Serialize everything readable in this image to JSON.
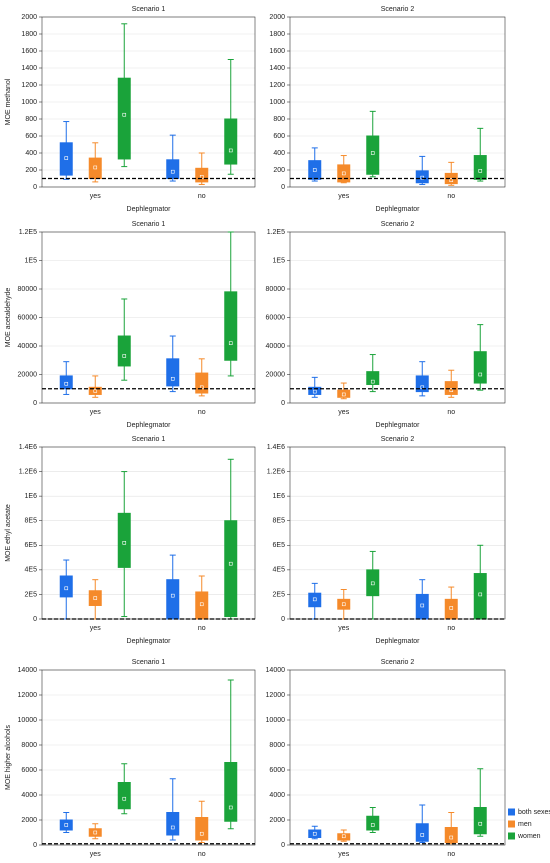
{
  "chart_data": [
    {
      "type": "box",
      "title": "Scenario 1",
      "ylabel": "MOE methanol",
      "xlabel": "Dephlegmator",
      "categories": [
        "yes",
        "no"
      ],
      "ylim": [
        0,
        2000
      ],
      "yticks": [
        0,
        200,
        400,
        600,
        800,
        1000,
        1200,
        1400,
        1600,
        1800,
        2000
      ],
      "grid": true,
      "threshold": 100,
      "series": [
        {
          "color": "#1f6fe8",
          "min": [
            90,
            70
          ],
          "q1": [
            140,
            100
          ],
          "median": [
            340,
            180
          ],
          "q3": [
            520,
            320
          ],
          "max": [
            770,
            610
          ]
        },
        {
          "color": "#f58a2a",
          "min": [
            60,
            30
          ],
          "q1": [
            100,
            60
          ],
          "median": [
            230,
            120
          ],
          "q3": [
            340,
            220
          ],
          "max": [
            520,
            400
          ]
        },
        {
          "color": "#1aa33a",
          "min": [
            240,
            150
          ],
          "q1": [
            330,
            270
          ],
          "median": [
            850,
            430
          ],
          "q3": [
            1280,
            800
          ],
          "max": [
            1920,
            1500
          ]
        }
      ]
    },
    {
      "type": "box",
      "title": "Scenario 2",
      "xlabel": "Dephlegmator",
      "categories": [
        "yes",
        "no"
      ],
      "ylim": [
        0,
        2000
      ],
      "yticks": [
        0,
        200,
        400,
        600,
        800,
        1000,
        1200,
        1400,
        1600,
        1800,
        2000
      ],
      "grid": true,
      "threshold": 100,
      "series": [
        {
          "color": "#1f6fe8",
          "min": [
            70,
            30
          ],
          "q1": [
            90,
            50
          ],
          "median": [
            200,
            110
          ],
          "q3": [
            310,
            190
          ],
          "max": [
            460,
            360
          ]
        },
        {
          "color": "#f58a2a",
          "min": [
            50,
            20
          ],
          "q1": [
            60,
            40
          ],
          "median": [
            160,
            80
          ],
          "q3": [
            260,
            160
          ],
          "max": [
            370,
            290
          ]
        },
        {
          "color": "#1aa33a",
          "min": [
            120,
            70
          ],
          "q1": [
            150,
            90
          ],
          "median": [
            400,
            190
          ],
          "q3": [
            600,
            370
          ],
          "max": [
            890,
            690
          ]
        }
      ]
    },
    {
      "type": "box",
      "title": "Scenario 1",
      "ylabel": "MOE acetaldehyde",
      "xlabel": "Dephlegmator",
      "categories": [
        "yes",
        "no"
      ],
      "ylim": [
        0,
        120000
      ],
      "yticks": [
        0,
        20000,
        40000,
        60000,
        80000,
        {
          "value": 100000,
          "label": "1E5"
        },
        {
          "value": 120000,
          "label": "1.2E5"
        }
      ],
      "grid": true,
      "threshold": 10000,
      "series": [
        {
          "color": "#1f6fe8",
          "min": [
            6000,
            8000
          ],
          "q1": [
            10000,
            12000
          ],
          "median": [
            13500,
            17000
          ],
          "q3": [
            19000,
            31000
          ],
          "max": [
            29000,
            47000
          ]
        },
        {
          "color": "#f58a2a",
          "min": [
            4000,
            5000
          ],
          "q1": [
            6000,
            7000
          ],
          "median": [
            8500,
            11000
          ],
          "q3": [
            11000,
            21000
          ],
          "max": [
            19000,
            31000
          ]
        },
        {
          "color": "#1aa33a",
          "min": [
            16000,
            19000
          ],
          "q1": [
            26000,
            30000
          ],
          "median": [
            33000,
            42000
          ],
          "q3": [
            47000,
            78000
          ],
          "max": [
            73000,
            120000
          ]
        }
      ]
    },
    {
      "type": "box",
      "title": "Scenario 2",
      "xlabel": "Dephlegmator",
      "categories": [
        "yes",
        "no"
      ],
      "ylim": [
        0,
        120000
      ],
      "yticks": [
        0,
        20000,
        40000,
        60000,
        80000,
        {
          "value": 100000,
          "label": "1E5"
        },
        {
          "value": 120000,
          "label": "1.2E5"
        }
      ],
      "grid": true,
      "threshold": 10000,
      "series": [
        {
          "color": "#1f6fe8",
          "min": [
            4000,
            5000
          ],
          "q1": [
            6000,
            8000
          ],
          "median": [
            8000,
            11000
          ],
          "q3": [
            11000,
            19000
          ],
          "max": [
            18000,
            29000
          ]
        },
        {
          "color": "#f58a2a",
          "min": [
            3000,
            4000
          ],
          "q1": [
            4000,
            6000
          ],
          "median": [
            6000,
            9000
          ],
          "q3": [
            9000,
            15000
          ],
          "max": [
            14000,
            23000
          ]
        },
        {
          "color": "#1aa33a",
          "min": [
            8000,
            9000
          ],
          "q1": [
            13000,
            14000
          ],
          "median": [
            15000,
            20000
          ],
          "q3": [
            22000,
            36000
          ],
          "max": [
            34000,
            55000
          ]
        }
      ]
    },
    {
      "type": "box",
      "title": "Scenario 1",
      "ylabel": "MOE ethyl acetate",
      "xlabel": "Dephlegmator",
      "categories": [
        "yes",
        "no"
      ],
      "ylim": [
        0,
        1400000
      ],
      "yticks": [
        0,
        {
          "value": 200000,
          "label": "2E5"
        },
        {
          "value": 400000,
          "label": "4E5"
        },
        {
          "value": 600000,
          "label": "6E5"
        },
        {
          "value": 800000,
          "label": "8E5"
        },
        {
          "value": 1000000,
          "label": "1E6"
        },
        {
          "value": 1200000,
          "label": "1.2E6"
        },
        {
          "value": 1400000,
          "label": "1.4E6"
        }
      ],
      "grid": true,
      "threshold": 0,
      "series": [
        {
          "color": "#1f6fe8",
          "min": [
            0,
            0
          ],
          "q1": [
            180000,
            0
          ],
          "median": [
            250000,
            190000
          ],
          "q3": [
            350000,
            320000
          ],
          "max": [
            480000,
            520000
          ]
        },
        {
          "color": "#f58a2a",
          "min": [
            0,
            0
          ],
          "q1": [
            110000,
            0
          ],
          "median": [
            170000,
            120000
          ],
          "q3": [
            230000,
            220000
          ],
          "max": [
            320000,
            350000
          ]
        },
        {
          "color": "#1aa33a",
          "min": [
            20000,
            0
          ],
          "q1": [
            420000,
            20000
          ],
          "median": [
            620000,
            450000
          ],
          "q3": [
            860000,
            800000
          ],
          "max": [
            1200000,
            1300000
          ]
        }
      ]
    },
    {
      "type": "box",
      "title": "Scenario 2",
      "xlabel": "Dephlegmator",
      "categories": [
        "yes",
        "no"
      ],
      "ylim": [
        0,
        1400000
      ],
      "yticks": [
        0,
        {
          "value": 200000,
          "label": "2E5"
        },
        {
          "value": 400000,
          "label": "4E5"
        },
        {
          "value": 600000,
          "label": "6E5"
        },
        {
          "value": 800000,
          "label": "8E5"
        },
        {
          "value": 1000000,
          "label": "1E6"
        },
        {
          "value": 1200000,
          "label": "1.2E6"
        },
        {
          "value": 1400000,
          "label": "1.4E6"
        }
      ],
      "grid": true,
      "threshold": 0,
      "series": [
        {
          "color": "#1f6fe8",
          "min": [
            0,
            0
          ],
          "q1": [
            100000,
            0
          ],
          "median": [
            160000,
            110000
          ],
          "q3": [
            210000,
            200000
          ],
          "max": [
            290000,
            320000
          ]
        },
        {
          "color": "#f58a2a",
          "min": [
            0,
            0
          ],
          "q1": [
            80000,
            0
          ],
          "median": [
            120000,
            90000
          ],
          "q3": [
            160000,
            160000
          ],
          "max": [
            240000,
            260000
          ]
        },
        {
          "color": "#1aa33a",
          "min": [
            0,
            0
          ],
          "q1": [
            190000,
            0
          ],
          "median": [
            290000,
            200000
          ],
          "q3": [
            400000,
            370000
          ],
          "max": [
            550000,
            600000
          ]
        }
      ]
    },
    {
      "type": "box",
      "title": "Scenario 1",
      "ylabel": "MOE higher alcohols",
      "categories": [
        "yes",
        "no"
      ],
      "ylim": [
        0,
        14000
      ],
      "yticks": [
        0,
        2000,
        4000,
        6000,
        8000,
        10000,
        12000,
        14000
      ],
      "grid": true,
      "threshold": 100,
      "series": [
        {
          "color": "#1f6fe8",
          "min": [
            1000,
            400
          ],
          "q1": [
            1200,
            800
          ],
          "median": [
            1600,
            1400
          ],
          "q3": [
            2000,
            2600
          ],
          "max": [
            2600,
            5300
          ]
        },
        {
          "color": "#f58a2a",
          "min": [
            500,
            200
          ],
          "q1": [
            700,
            400
          ],
          "median": [
            1000,
            900
          ],
          "q3": [
            1300,
            2200
          ],
          "max": [
            1700,
            3500
          ]
        },
        {
          "color": "#1aa33a",
          "min": [
            2500,
            1300
          ],
          "q1": [
            2900,
            1900
          ],
          "median": [
            3700,
            3000
          ],
          "q3": [
            5000,
            6600
          ],
          "max": [
            6500,
            13200
          ]
        }
      ]
    },
    {
      "type": "box",
      "title": "Scenario 2",
      "categories": [
        "yes",
        "no"
      ],
      "ylim": [
        0,
        14000
      ],
      "yticks": [
        0,
        2000,
        4000,
        6000,
        8000,
        10000,
        12000,
        14000
      ],
      "grid": true,
      "threshold": 100,
      "series": [
        {
          "name": "both sexes",
          "color": "#1f6fe8",
          "min": [
            500,
            200
          ],
          "q1": [
            600,
            300
          ],
          "median": [
            900,
            800
          ],
          "q3": [
            1200,
            1700
          ],
          "max": [
            1500,
            3200
          ]
        },
        {
          "name": "men",
          "color": "#f58a2a",
          "min": [
            300,
            100
          ],
          "q1": [
            400,
            200
          ],
          "median": [
            700,
            600
          ],
          "q3": [
            900,
            1400
          ],
          "max": [
            1200,
            2600
          ]
        },
        {
          "name": "women",
          "color": "#1aa33a",
          "min": [
            1000,
            700
          ],
          "q1": [
            1200,
            900
          ],
          "median": [
            1600,
            1700
          ],
          "q3": [
            2300,
            3000
          ],
          "max": [
            3000,
            6100
          ]
        }
      ]
    }
  ]
}
